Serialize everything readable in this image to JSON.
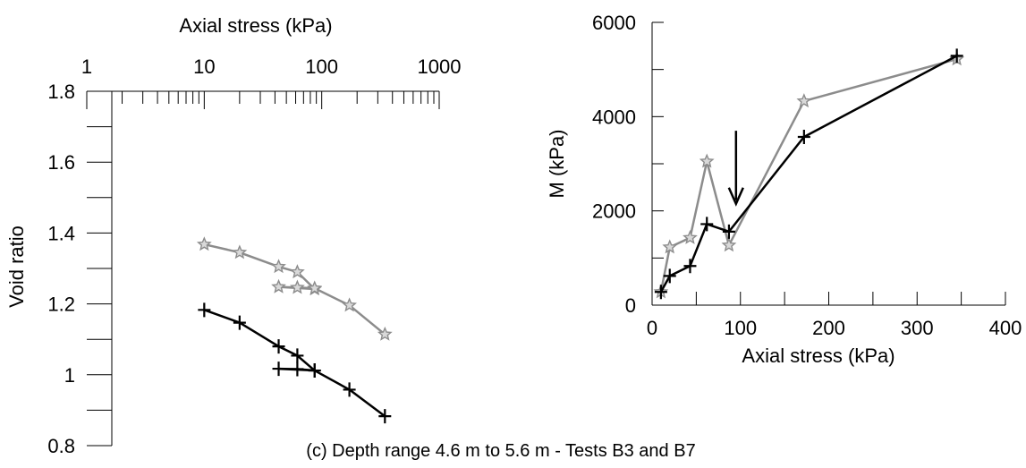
{
  "caption": "(c) Depth range 4.6 m to 5.6 m - Tests B3 and B7",
  "chart_data": [
    {
      "type": "line",
      "xlabel": "Axial stress (kPa)",
      "ylabel": "Void ratio",
      "xscale": "log",
      "xaxis_position": "top",
      "xlim": [
        1,
        1000
      ],
      "ylim": [
        0.8,
        1.8
      ],
      "xticklabels": [
        "1",
        "10",
        "100",
        "1000"
      ],
      "yticklabels": [
        "0.8",
        "1",
        "1.2",
        "1.4",
        "1.6",
        "1.8"
      ],
      "grid": false,
      "legend": "none",
      "series": [
        {
          "color": "#8c8c8c",
          "marker": "star",
          "x": [
            10,
            20,
            43,
            62,
            87,
            43,
            62,
            87,
            172,
            345
          ],
          "y": [
            1.368,
            1.345,
            1.305,
            1.29,
            1.242,
            1.248,
            1.246,
            1.244,
            1.196,
            1.114
          ]
        },
        {
          "color": "#000000",
          "marker": "plus",
          "x": [
            10,
            20,
            43,
            62,
            87,
            43,
            62,
            87,
            172,
            345
          ],
          "y": [
            1.183,
            1.147,
            1.08,
            1.054,
            1.012,
            1.017,
            1.016,
            1.012,
            0.958,
            0.883
          ]
        }
      ]
    },
    {
      "type": "line",
      "xlabel": "Axial stress (kPa)",
      "ylabel": "M (kPa)",
      "xlim": [
        0,
        400
      ],
      "ylim": [
        0,
        6000
      ],
      "xticklabels": [
        "0",
        "100",
        "200",
        "300",
        "400"
      ],
      "yticklabels": [
        "0",
        "2000",
        "4000",
        "6000"
      ],
      "grid": false,
      "legend": "none",
      "annotations": [
        {
          "type": "arrow",
          "direction": "down",
          "x": 95,
          "y_from": 3700,
          "y_to": 2150
        }
      ],
      "series": [
        {
          "color": "#8c8c8c",
          "marker": "star",
          "x": [
            10,
            20,
            43,
            62,
            87,
            172,
            345
          ],
          "y": [
            280,
            1230,
            1430,
            3050,
            1270,
            4330,
            5220
          ]
        },
        {
          "color": "#000000",
          "marker": "plus",
          "x": [
            10,
            20,
            43,
            62,
            87,
            172,
            345
          ],
          "y": [
            280,
            620,
            830,
            1720,
            1560,
            3570,
            5290
          ]
        }
      ]
    }
  ]
}
